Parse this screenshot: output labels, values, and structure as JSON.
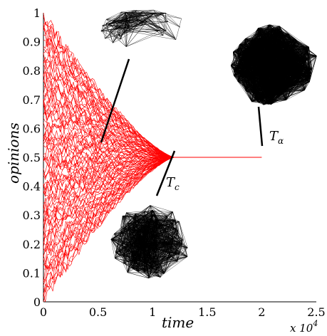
{
  "chart_data": {
    "type": "line",
    "title": "",
    "xlabel": "time",
    "ylabel": "opinions",
    "x_multiplier": "x 10",
    "x_multiplier_exp": "4",
    "xlim": [
      0,
      2.5
    ],
    "ylim": [
      0,
      1
    ],
    "x_ticks": [
      "0",
      "0.5",
      "1",
      "1.5",
      "2",
      "2.5"
    ],
    "y_ticks": [
      "0",
      "0.1",
      "0.2",
      "0.3",
      "0.4",
      "0.5",
      "0.6",
      "0.7",
      "0.8",
      "0.9",
      "1"
    ],
    "grid": false,
    "series_color": "#ff0000",
    "series_description": "Many opinion trajectories starting uniformly in [0, 1] and converging to 0.5",
    "n_trajectories": 90,
    "initial_range": [
      0,
      1
    ],
    "consensus_value": 0.5,
    "consensus_time": 1.2,
    "end_time": 2.0,
    "annotations": [
      {
        "label": "T",
        "sub": "c",
        "x": 1.2
      },
      {
        "label": "T",
        "sub": "α",
        "x": 2.0
      }
    ],
    "network_insets": [
      {
        "name": "network-early",
        "description": "small two-cluster graph"
      },
      {
        "name": "network-consensus",
        "description": "dense graph at T_c"
      },
      {
        "name": "network-final",
        "description": "fully dense graph at T_alpha"
      }
    ],
    "network_color": "#000000"
  }
}
